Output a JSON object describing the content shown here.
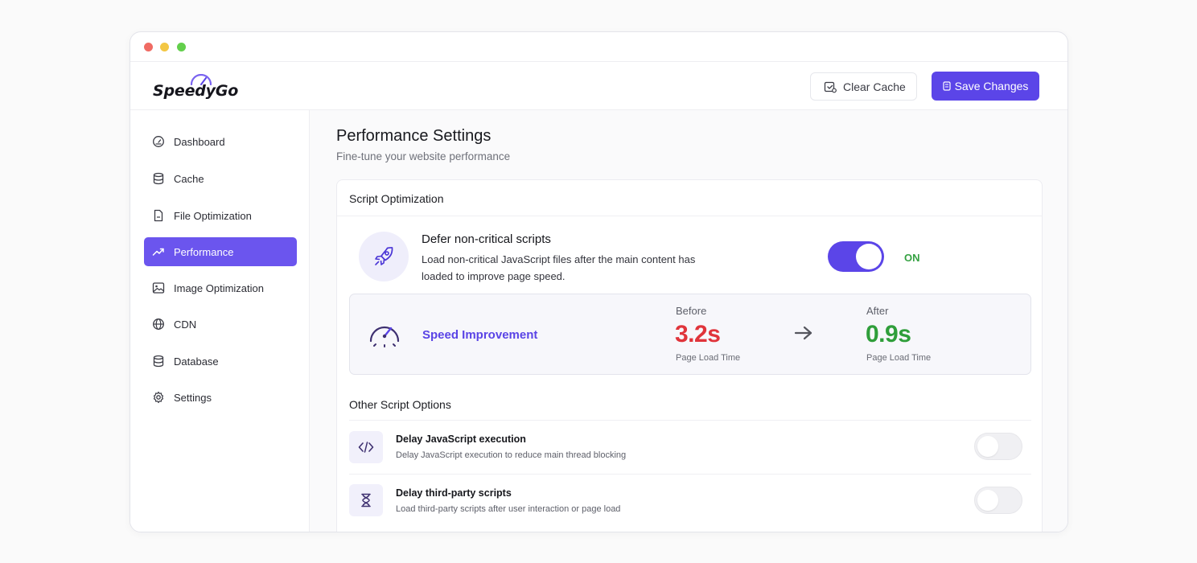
{
  "window": {
    "controls": [
      "close",
      "minimize",
      "maximize"
    ]
  },
  "brand": {
    "name": "SpeedyGo",
    "accent": "#5b45e8"
  },
  "header": {
    "clear_cache_label": "Clear Cache",
    "clear_cache_icon": "clear-cache-icon",
    "save_label": "Save Changes",
    "save_icon": "save-icon"
  },
  "sidebar": {
    "items": [
      {
        "label": "Dashboard",
        "icon": "dashboard-gauge-icon",
        "active": false
      },
      {
        "label": "Cache",
        "icon": "database-stack-icon",
        "active": false
      },
      {
        "label": "File Optimization",
        "icon": "file-icon",
        "active": false
      },
      {
        "label": "Performance",
        "icon": "trending-up-icon",
        "active": true
      },
      {
        "label": "Image Optimization",
        "icon": "image-icon",
        "active": false
      },
      {
        "label": "CDN",
        "icon": "globe-icon",
        "active": false
      },
      {
        "label": "Database",
        "icon": "database-icon",
        "active": false
      },
      {
        "label": "Settings",
        "icon": "gear-icon",
        "active": false
      }
    ]
  },
  "main": {
    "title": "Performance Settings",
    "subtitle": "Fine-tune your website performance",
    "section": {
      "title": "Script Optimization",
      "defer": {
        "title": "Defer non-critical scripts",
        "description": "Load non-critical JavaScript files after the main content has loaded to improve page speed.",
        "icon": "rocket-icon",
        "enabled": true,
        "state_label": "ON"
      },
      "speed": {
        "label": "Speed Improvement",
        "icon": "speedometer-icon",
        "before": {
          "caption": "Before",
          "value": "3.2s",
          "sub": "Page Load Time",
          "color": "#e0343b"
        },
        "after": {
          "caption": "After",
          "value": "0.9s",
          "sub": "Page Load Time",
          "color": "#2f9e3a"
        }
      },
      "other": {
        "title": "Other Script Options",
        "options": [
          {
            "title": "Delay JavaScript execution",
            "description": "Delay JavaScript execution to reduce main thread blocking",
            "icon": "code-icon",
            "enabled": false
          },
          {
            "title": "Delay third-party scripts",
            "description": "Load third-party scripts after user interaction or page load",
            "icon": "hourglass-icon",
            "enabled": false
          }
        ]
      }
    }
  }
}
